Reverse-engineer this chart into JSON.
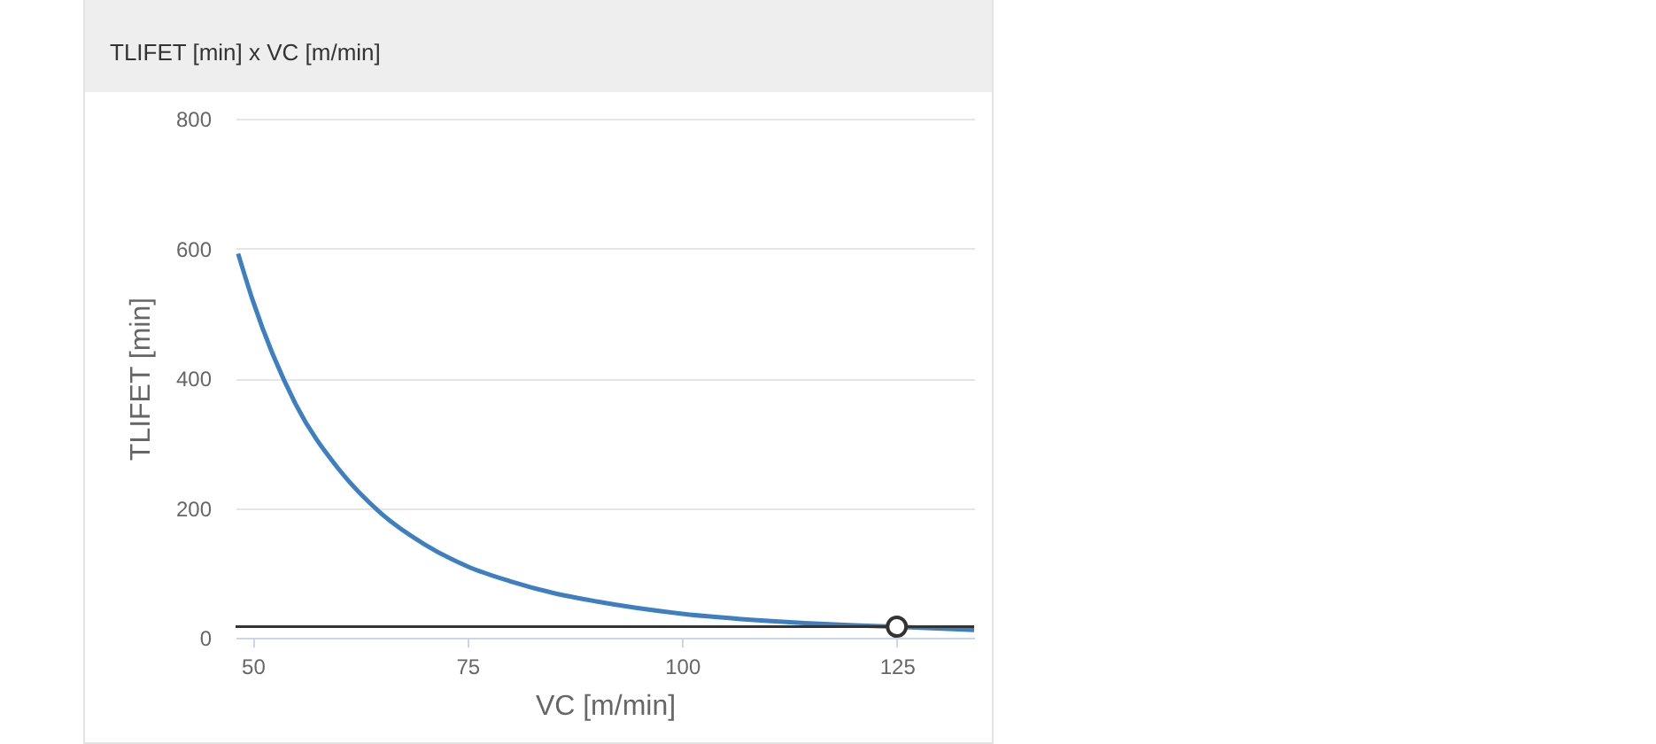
{
  "chart_data": {
    "type": "line",
    "title": "TLIFET [min] x VC [m/min]",
    "xlabel": "VC [m/min]",
    "ylabel": "TLIFET [min]",
    "xlim": [
      48,
      134
    ],
    "ylim": [
      0,
      800
    ],
    "xticks": [
      50,
      75,
      100,
      125
    ],
    "yticks": [
      0,
      200,
      400,
      600,
      800
    ],
    "grid": "y",
    "series": [
      {
        "color": "#3d7fc1",
        "marker": "none",
        "x": [
          48.3,
          50,
          55,
          60,
          65,
          70,
          75,
          80,
          85,
          90,
          100,
          110,
          120,
          125,
          134
        ],
        "values": [
          592,
          520,
          360,
          260,
          191,
          144,
          110,
          87,
          69,
          56,
          37,
          26,
          19,
          17,
          12
        ]
      },
      {
        "type": "scatter",
        "color": "#333333",
        "marker": "circle",
        "x": [
          125
        ],
        "values": [
          17
        ]
      }
    ],
    "ref_lines": [
      {
        "axis": "y",
        "value": 17,
        "color": "#333333"
      }
    ]
  }
}
